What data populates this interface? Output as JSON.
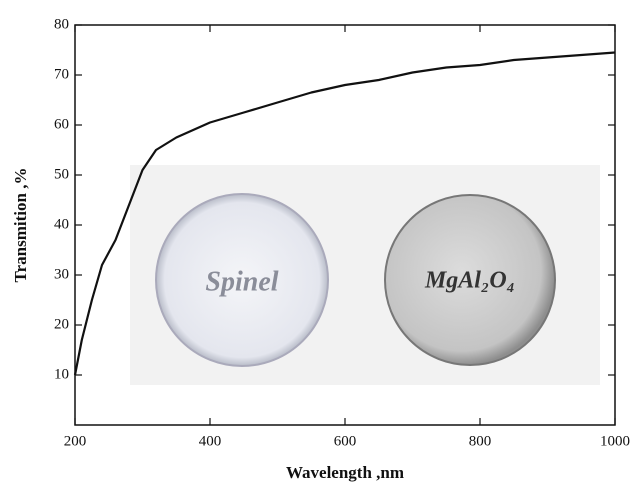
{
  "chart_data": {
    "type": "line",
    "x_label": "Wavelength ,nm",
    "y_label": "Transmition ,%",
    "x": [
      200,
      210,
      225,
      240,
      260,
      280,
      300,
      320,
      350,
      400,
      450,
      500,
      550,
      600,
      650,
      700,
      750,
      800,
      850,
      900,
      950,
      1000
    ],
    "values": [
      10,
      17,
      25,
      32,
      37,
      44,
      51,
      55,
      57.5,
      60.5,
      62.5,
      64.5,
      66.5,
      68,
      69,
      70.5,
      71.5,
      72,
      73,
      73.5,
      74,
      74.5
    ],
    "color": "#111111",
    "xlim": [
      200,
      1000
    ],
    "xticks": [
      200,
      400,
      600,
      800,
      1000
    ],
    "ylim": [
      0,
      80
    ],
    "yticks": [
      10,
      20,
      30,
      40,
      50,
      60,
      70,
      80
    ],
    "annotations": [
      "Spinel",
      "MgAl₂O₄"
    ]
  }
}
